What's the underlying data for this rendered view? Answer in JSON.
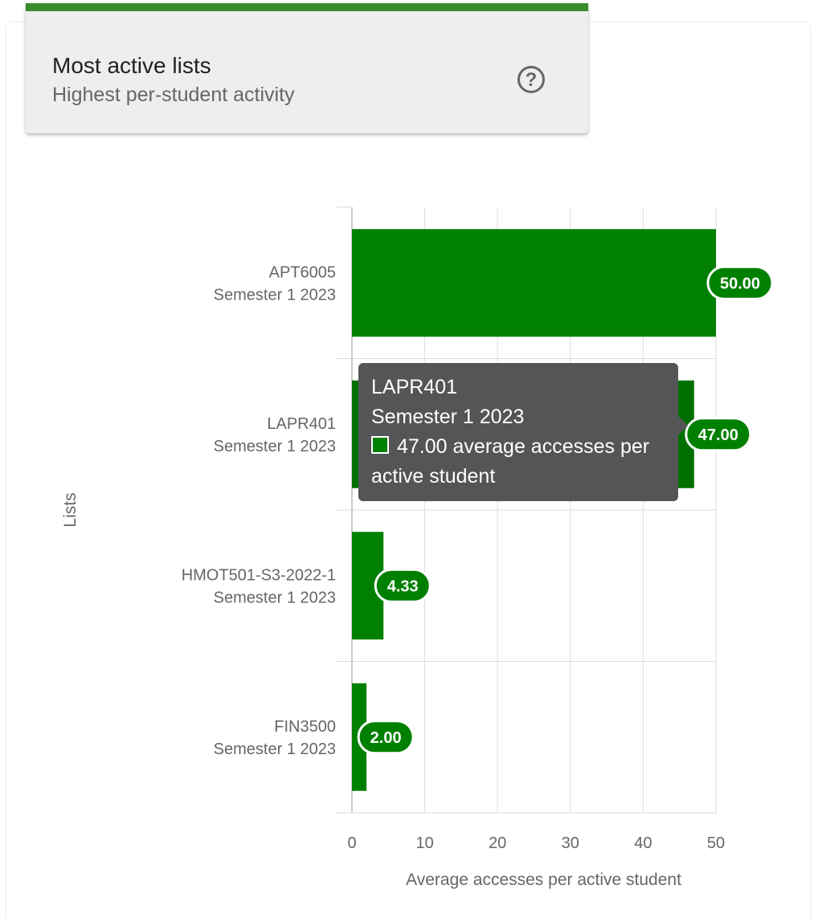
{
  "header": {
    "title": "Most active lists",
    "subtitle": "Highest per-student activity",
    "help_icon": "help-circle-icon"
  },
  "colors": {
    "bar": "#008000",
    "bar_hover": "#006f00",
    "accent": "#388e2f"
  },
  "chart_data": {
    "type": "bar",
    "orientation": "horizontal",
    "categories": [
      [
        "APT6005",
        "Semester 1 2023"
      ],
      [
        "LAPR401",
        "Semester 1 2023"
      ],
      [
        "HMOT501-S3-2022-1",
        "Semester 1 2023"
      ],
      [
        "FIN3500",
        "Semester 1 2023"
      ]
    ],
    "values": [
      50.0,
      47.0,
      4.33,
      2.0
    ],
    "data_labels": [
      "50.00",
      "47.00",
      "4.33",
      "2.00"
    ],
    "xlabel": "Average accesses per active student",
    "ylabel": "Lists",
    "xlim": [
      0,
      50
    ],
    "xticks": [
      "0",
      "10",
      "20",
      "30",
      "40",
      "50"
    ],
    "grid": true
  },
  "tooltip": {
    "line1": "LAPR401",
    "line2": "Semester 1 2023",
    "line3": "47.00 average accesses per active student"
  }
}
